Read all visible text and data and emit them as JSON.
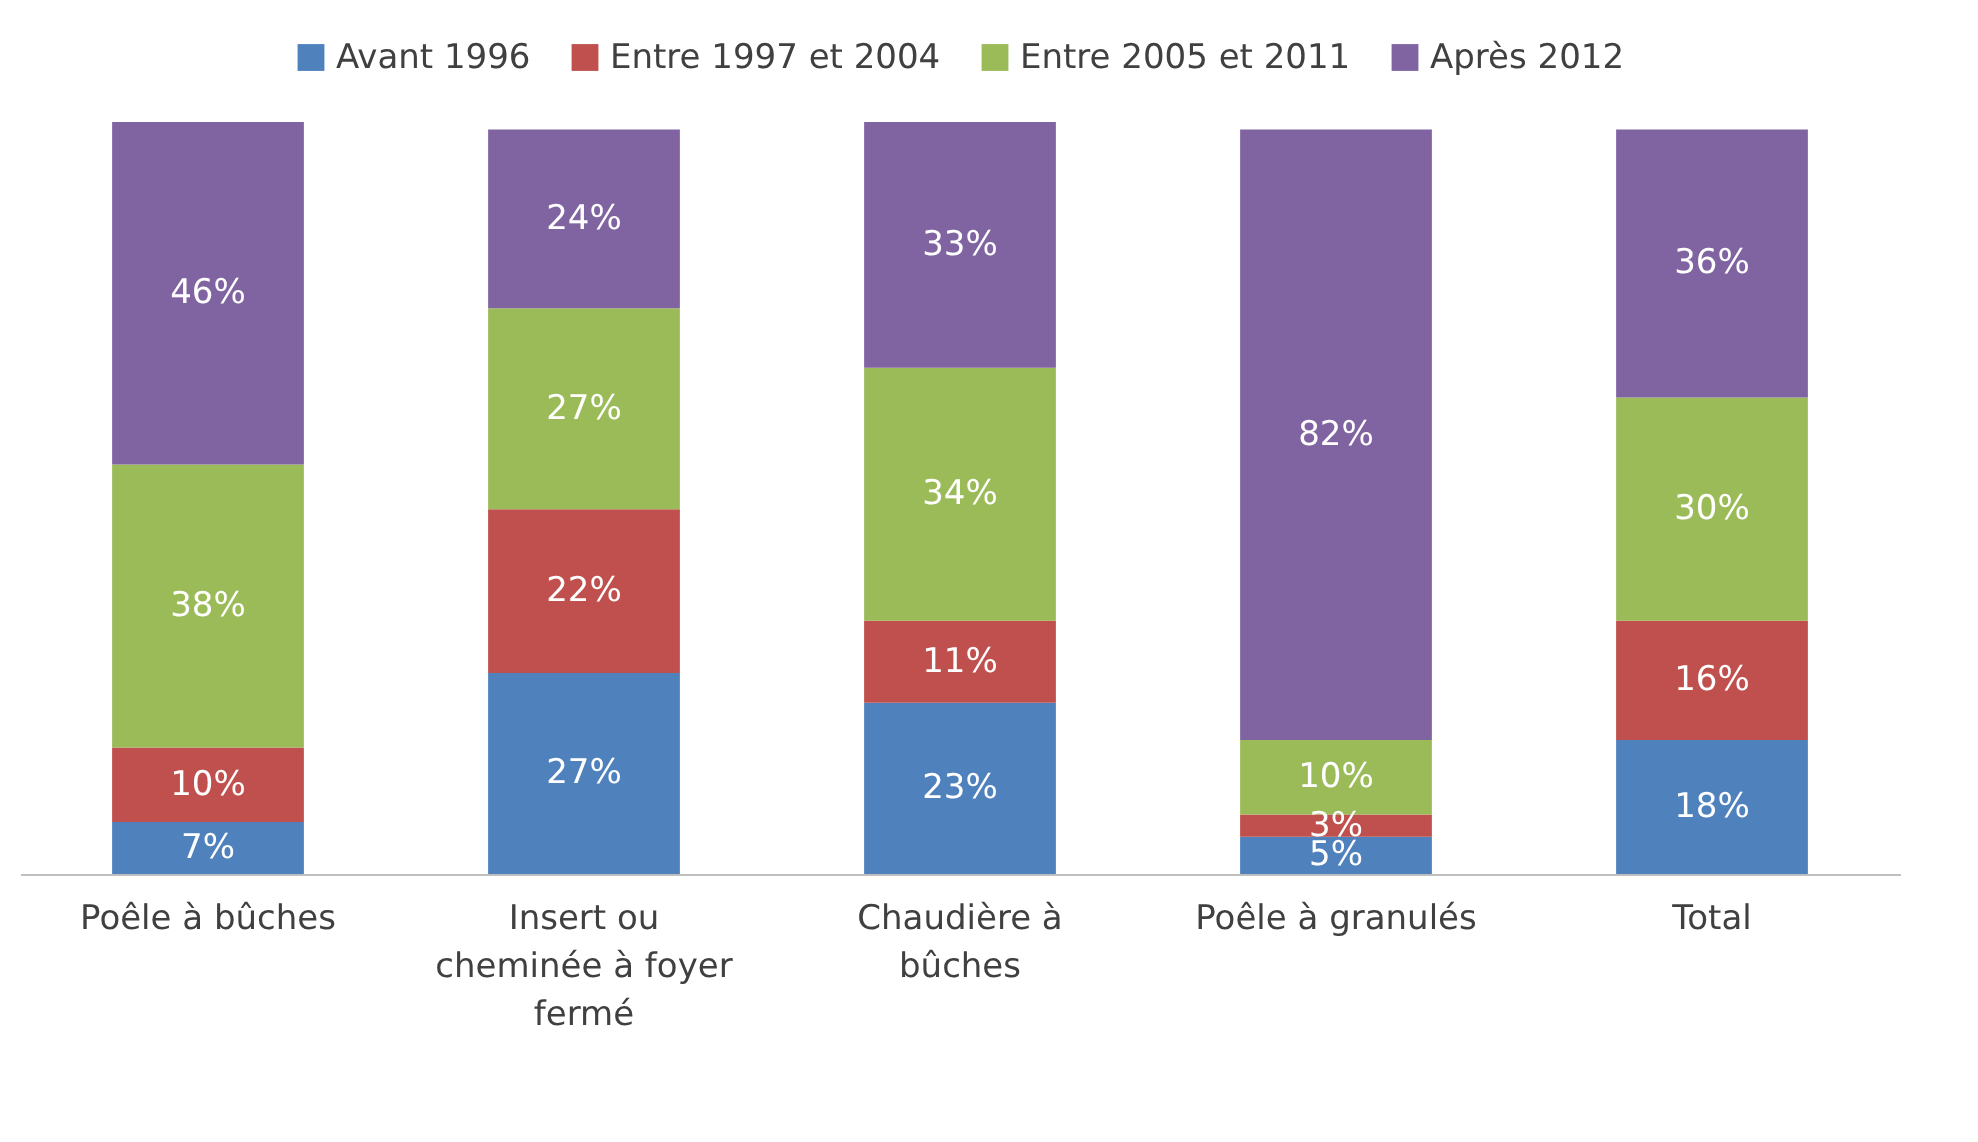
{
  "chart_data": {
    "type": "bar",
    "stacked": true,
    "legend": "top",
    "grid": false,
    "categories": [
      "Poêle à bûches",
      "Insert ou cheminée à foyer fermé",
      "Chaudière à bûches",
      "Poêle à granulés",
      "Total"
    ],
    "series": [
      {
        "name": "Avant 1996",
        "color": "#4f81bd",
        "values": [
          7,
          27,
          23,
          5,
          18
        ],
        "value_labels": [
          "7%",
          "27%",
          "23%",
          "5%",
          "18%"
        ]
      },
      {
        "name": "Entre 1997 et 2004",
        "color": "#c0504d",
        "values": [
          10,
          22,
          11,
          3,
          16
        ],
        "value_labels": [
          "10%",
          "22%",
          "11%",
          "3%",
          "16%"
        ]
      },
      {
        "name": "Entre 2005 et 2011",
        "color": "#9bbb59",
        "values": [
          38,
          27,
          34,
          10,
          30
        ],
        "value_labels": [
          "38%",
          "27%",
          "34%",
          "10%",
          "30%"
        ]
      },
      {
        "name": "Après 2012",
        "color": "#8064a2",
        "values": [
          46,
          24,
          33,
          82,
          36
        ],
        "value_labels": [
          "46%",
          "24%",
          "33%",
          "82%",
          "36%"
        ]
      }
    ]
  }
}
